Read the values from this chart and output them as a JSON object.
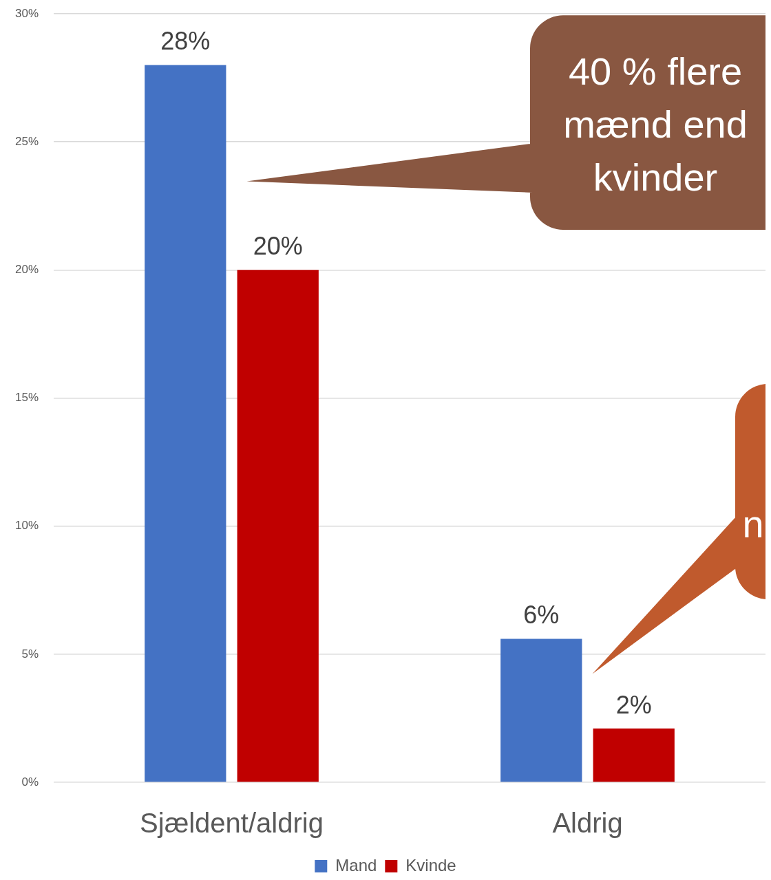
{
  "chart_data": {
    "type": "bar",
    "categories": [
      "Sjældent/aldrig",
      "Aldrig"
    ],
    "series": [
      {
        "name": "Mand",
        "color": "#4472c4",
        "values": [
          28,
          5.6
        ],
        "value_labels": [
          "28%",
          "6%"
        ]
      },
      {
        "name": "Kvinde",
        "color": "#c00000",
        "values": [
          20,
          2.1
        ],
        "value_labels": [
          "20%",
          "2%"
        ]
      }
    ],
    "ylim": [
      0,
      30
    ],
    "yticks": [
      {
        "value": 0,
        "label": "0%"
      },
      {
        "value": 5,
        "label": "5%"
      },
      {
        "value": 10,
        "label": "10%"
      },
      {
        "value": 15,
        "label": "15%"
      },
      {
        "value": 20,
        "label": "20%"
      },
      {
        "value": 25,
        "label": "25%"
      },
      {
        "value": 30,
        "label": "30%"
      }
    ],
    "grid": "y",
    "legend": "bottom",
    "annotations": [
      "40 % flere mænd end kvinder",
      "n"
    ]
  }
}
